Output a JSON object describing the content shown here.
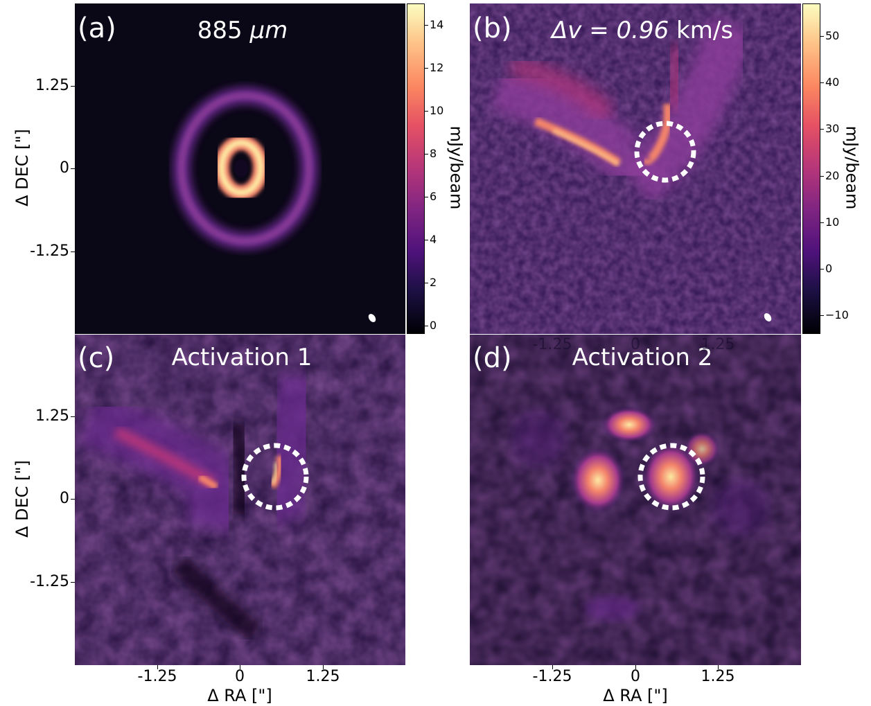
{
  "figure": {
    "panels": [
      {
        "id": "a",
        "label": "(a)",
        "title": "885 μm",
        "title_plain": "885 ",
        "title_italic": "μm"
      },
      {
        "id": "b",
        "label": "(b)",
        "title_italic": "Δv = 0.96",
        "title_plain": " km/s"
      },
      {
        "id": "c",
        "label": "(c)",
        "title": "Activation 1"
      },
      {
        "id": "d",
        "label": "(d)",
        "title": "Activation 2"
      }
    ],
    "y_axis_label": "Δ DEC [\"]",
    "x_axis_label": "Δ RA [\"]",
    "y_ticks": [
      "1.25",
      "0",
      "-1.25"
    ],
    "x_ticks": [
      "-1.25",
      "0",
      "1.25"
    ],
    "ghost_x_ticks": [
      "-1.25",
      "0",
      "1.25"
    ],
    "colorbar_a": {
      "label": "mJy/beam",
      "ticks": [
        "14",
        "12",
        "10",
        "8",
        "6",
        "4",
        "2",
        "0"
      ]
    },
    "colorbar_b": {
      "label": "mJy/beam",
      "ticks": [
        "50",
        "40",
        "30",
        "20",
        "10",
        "0",
        "−10"
      ]
    }
  },
  "chart_data": [
    {
      "type": "heatmap",
      "panel": "(a)",
      "title": "885 μm",
      "ylabel": "Δ DEC [\"]",
      "yticks": [
        1.25,
        0,
        -1.25
      ],
      "colorbar": {
        "label": "mJy/beam",
        "range": [
          -0.4,
          15
        ],
        "ticks": [
          0,
          2,
          4,
          6,
          8,
          10,
          12,
          14
        ]
      },
      "features": [
        "inner bright ring",
        "outer faint ring",
        "beam ellipse"
      ]
    },
    {
      "type": "heatmap",
      "panel": "(b)",
      "title": "Δv = 0.96 km/s",
      "colorbar": {
        "label": "mJy/beam",
        "range": [
          -14,
          57
        ],
        "ticks": [
          50,
          40,
          30,
          20,
          10,
          0,
          -10
        ]
      },
      "features": [
        "V-shaped emission",
        "dashed circle",
        "beam ellipse"
      ]
    },
    {
      "type": "heatmap",
      "panel": "(c)",
      "title": "Activation 1",
      "xlabel": "Δ RA [\"]",
      "ylabel": "Δ DEC [\"]",
      "xticks": [
        -1.25,
        0,
        1.25
      ],
      "yticks": [
        1.25,
        0,
        -1.25
      ],
      "features": [
        "dashed circle"
      ]
    },
    {
      "type": "heatmap",
      "panel": "(d)",
      "title": "Activation 2",
      "xlabel": "Δ RA [\"]",
      "xticks": [
        -1.25,
        0,
        1.25
      ],
      "features": [
        "dashed circle"
      ]
    }
  ]
}
